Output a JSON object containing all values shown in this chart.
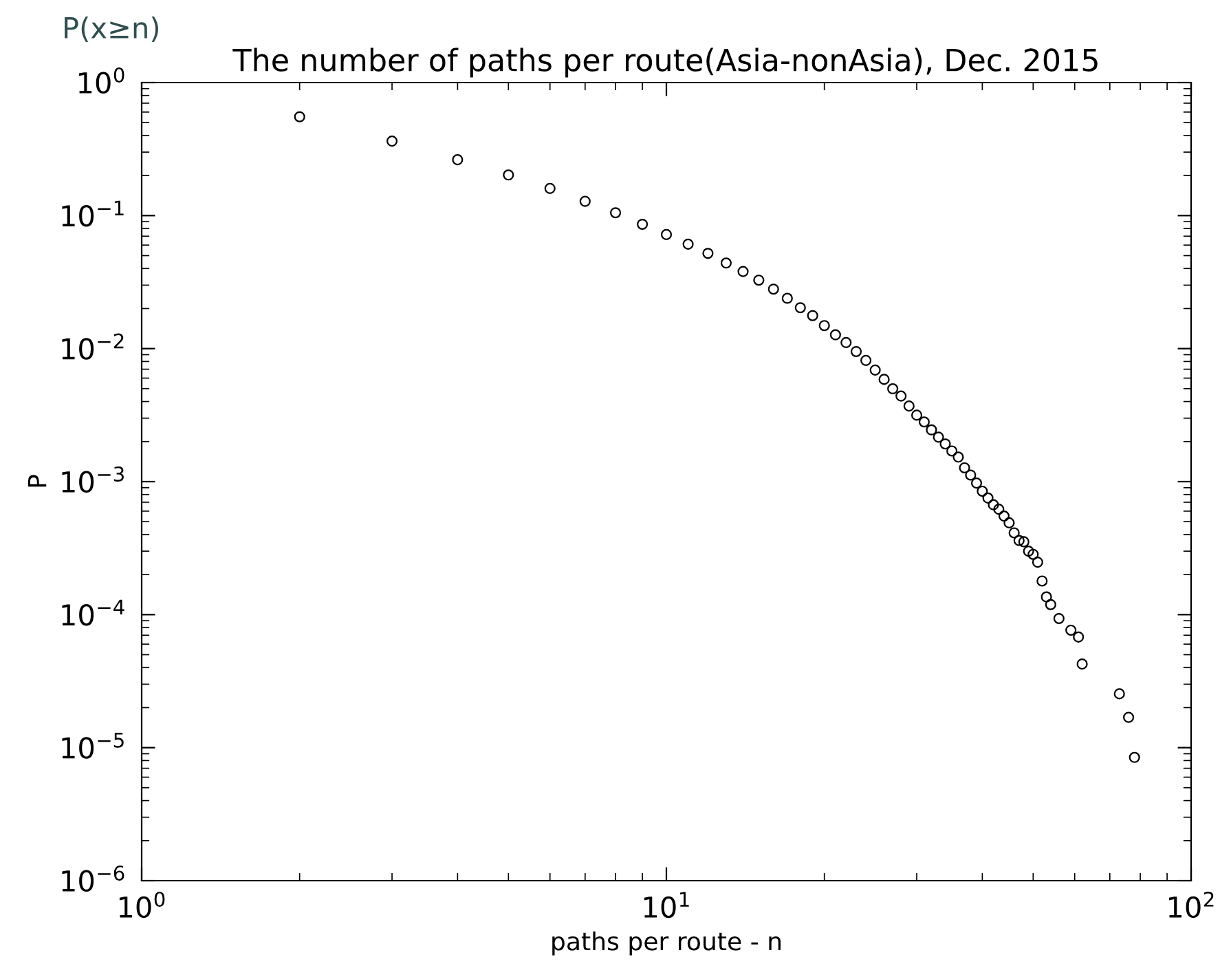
{
  "chart_data": {
    "type": "scatter",
    "title": "The number of paths per route(Asia-nonAsia), Dec. 2015",
    "xlabel": "paths per route - n",
    "ylabel": "P",
    "annotations": [
      "P(x≥n)"
    ],
    "log": "xy",
    "marker": "circle",
    "grid": false,
    "xlim": [
      1,
      100
    ],
    "ylim": [
      1e-06,
      1
    ],
    "xticks": [
      {
        "value": 1,
        "label": "10$^{0}$"
      },
      {
        "value": 10,
        "label": "10$^{1}$"
      },
      {
        "value": 100,
        "label": "10$^{2}$"
      }
    ],
    "yticks": [
      {
        "value": 1e-06,
        "label": "10$^{−6}$"
      },
      {
        "value": 1e-05,
        "label": "10$^{−5}$"
      },
      {
        "value": 0.0001,
        "label": "10$^{−4}$"
      },
      {
        "value": 0.001,
        "label": "10$^{−3}$"
      },
      {
        "value": 0.01,
        "label": "10$^{−2}$"
      },
      {
        "value": 0.1,
        "label": "10$^{−1}$"
      },
      {
        "value": 1,
        "label": "10$^{0}$"
      }
    ],
    "series": [
      {
        "color": "#000000",
        "x": [
          2,
          3,
          4,
          5,
          6,
          7,
          8,
          9,
          10,
          11,
          12,
          13,
          14,
          15,
          16,
          17,
          18,
          19,
          20,
          21,
          22,
          23,
          24,
          25,
          26,
          27,
          28,
          29,
          30,
          31,
          32,
          33,
          34,
          35,
          36,
          37,
          38,
          39,
          40,
          41,
          42,
          43,
          44,
          45,
          46,
          47,
          48,
          49,
          50,
          51,
          52,
          53,
          54,
          56,
          59,
          61,
          62,
          73,
          76,
          78
        ],
        "values": [
          0.553,
          0.363,
          0.263,
          0.202,
          0.16,
          0.128,
          0.105,
          0.086,
          0.072,
          0.061,
          0.052,
          0.044,
          0.038,
          0.0327,
          0.028,
          0.0239,
          0.0203,
          0.0177,
          0.0149,
          0.0127,
          0.0111,
          0.0095,
          0.00815,
          0.0069,
          0.00587,
          0.00499,
          0.0044,
          0.0037,
          0.00316,
          0.00281,
          0.00245,
          0.00216,
          0.00192,
          0.0017,
          0.00153,
          0.00127,
          0.00112,
          0.000975,
          0.000847,
          0.000753,
          0.00067,
          0.00062,
          0.000551,
          0.00049,
          0.000412,
          0.000361,
          0.000353,
          0.0003,
          0.000284,
          0.000248,
          0.000179,
          0.000136,
          0.000119,
          9.35e-05,
          7.64e-05,
          6.79e-05,
          4.25e-05,
          2.54e-05,
          1.69e-05,
          8.45e-06
        ]
      }
    ]
  }
}
